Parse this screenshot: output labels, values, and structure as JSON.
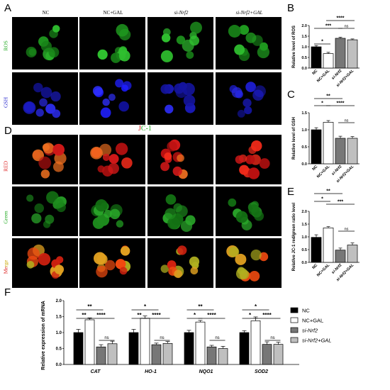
{
  "panels": {
    "A": "A",
    "B": "B",
    "C": "C",
    "D": "D",
    "E": "E",
    "F": "F"
  },
  "image_panel_A": {
    "columns": [
      "NC",
      "NC+GAL",
      "si-Nrf2",
      "si-Nrf2+GAL"
    ],
    "rows": [
      "ROS",
      "GSH"
    ],
    "row_colors": [
      "#22aa22",
      "#2222cc"
    ]
  },
  "image_panel_D": {
    "title_j": "J",
    "title_c": "C-1",
    "rows": [
      "RED",
      "Green",
      "Merge"
    ],
    "merge_me": "Me",
    "merge_rge": "rge"
  },
  "chart_data": [
    {
      "id": "B",
      "type": "bar",
      "ylabel": "Relative level of ROS",
      "categories": [
        "NC",
        "NC+GAL",
        "si-Nrf2",
        "si-Nrf2+GAL"
      ],
      "values": [
        1.0,
        0.68,
        1.4,
        1.33
      ],
      "errors": [
        0.06,
        0.06,
        0.05,
        0.04
      ],
      "ylim": [
        0,
        2.0
      ],
      "yticks": [
        "0.0",
        "0.5",
        "1.0",
        "1.5",
        "2.0"
      ],
      "significance": [
        {
          "label": "*",
          "from": 0,
          "to": 1
        },
        {
          "label": "***",
          "from": 0,
          "to": 2
        },
        {
          "label": "ns",
          "from": 2,
          "to": 3
        },
        {
          "label": "****",
          "from": 1,
          "to": 3
        }
      ]
    },
    {
      "id": "C",
      "type": "bar",
      "ylabel": "Relative level of GSH",
      "categories": [
        "NC",
        "NC+GAL",
        "si-Nrf2",
        "si-Nrf2+GAL"
      ],
      "values": [
        1.0,
        1.22,
        0.75,
        0.75
      ],
      "errors": [
        0.06,
        0.05,
        0.06,
        0.05
      ],
      "ylim": [
        0,
        1.5
      ],
      "yticks": [
        "0.0",
        "0.5",
        "1.0",
        "1.5"
      ],
      "significance": [
        {
          "label": "**",
          "from": 0,
          "to": 2
        },
        {
          "label": "*",
          "from": 0,
          "to": 1
        },
        {
          "label": "****",
          "from": 1,
          "to": 3
        },
        {
          "label": "ns",
          "from": 2,
          "to": 3
        }
      ]
    },
    {
      "id": "E",
      "type": "bar",
      "ylabel": "Relative JC-1 red/green ratio level",
      "categories": [
        "NC",
        "NC+GAL",
        "si-Nrf2",
        "si-Nrf2+GAL"
      ],
      "values": [
        0.98,
        1.35,
        0.48,
        0.68
      ],
      "errors": [
        0.1,
        0.05,
        0.08,
        0.08
      ],
      "ylim": [
        0,
        2.0
      ],
      "yticks": [
        "0.0",
        "0.5",
        "1.0",
        "1.5",
        "2.0"
      ],
      "significance": [
        {
          "label": "**",
          "from": 0,
          "to": 2
        },
        {
          "label": "*",
          "from": 0,
          "to": 1
        },
        {
          "label": "***",
          "from": 1,
          "to": 3
        },
        {
          "label": "ns",
          "from": 2,
          "to": 3
        }
      ]
    },
    {
      "id": "F",
      "type": "bar",
      "ylabel": "Relative expression of mRNA",
      "categories": [
        "CAT",
        "HO-1",
        "NQO1",
        "SOD2"
      ],
      "series": [
        {
          "name": "NC",
          "values": [
            1.0,
            1.0,
            1.0,
            1.0
          ],
          "errors": [
            0.1,
            0.1,
            0.07,
            0.06
          ],
          "color": "#000000"
        },
        {
          "name": "NC+GAL",
          "values": [
            1.4,
            1.45,
            1.33,
            1.37
          ],
          "errors": [
            0.06,
            0.07,
            0.05,
            0.12
          ],
          "color": "#ffffff"
        },
        {
          "name": "si-Nrf2",
          "values": [
            0.55,
            0.62,
            0.55,
            0.63
          ],
          "errors": [
            0.07,
            0.05,
            0.05,
            0.08
          ],
          "color": "#777777"
        },
        {
          "name": "si-Nrf2+GAL",
          "values": [
            0.65,
            0.66,
            0.5,
            0.63
          ],
          "errors": [
            0.08,
            0.06,
            0.07,
            0.07
          ],
          "color": "#bfbfbf"
        }
      ],
      "ylim": [
        0,
        2.0
      ],
      "yticks": [
        "0.0",
        "0.5",
        "1.0",
        "1.5",
        "2.0"
      ],
      "group_significance": [
        [
          {
            "label": "**",
            "from": 0,
            "to": 2
          },
          {
            "label": "**",
            "from": 0,
            "to": 1
          },
          {
            "label": "****",
            "from": 1,
            "to": 3
          },
          {
            "label": "ns",
            "from": 2,
            "to": 3
          }
        ],
        [
          {
            "label": "*",
            "from": 0,
            "to": 2
          },
          {
            "label": "**",
            "from": 0,
            "to": 1
          },
          {
            "label": "****",
            "from": 1,
            "to": 3
          },
          {
            "label": "ns",
            "from": 2,
            "to": 3
          }
        ],
        [
          {
            "label": "**",
            "from": 0,
            "to": 2
          },
          {
            "label": "*",
            "from": 0,
            "to": 1
          },
          {
            "label": "****",
            "from": 1,
            "to": 3
          },
          {
            "label": "ns",
            "from": 2,
            "to": 3
          }
        ],
        [
          {
            "label": "*",
            "from": 0,
            "to": 2
          },
          {
            "label": "*",
            "from": 0,
            "to": 1
          },
          {
            "label": "****",
            "from": 1,
            "to": 3
          },
          {
            "label": "ns",
            "from": 2,
            "to": 3
          }
        ]
      ]
    }
  ]
}
